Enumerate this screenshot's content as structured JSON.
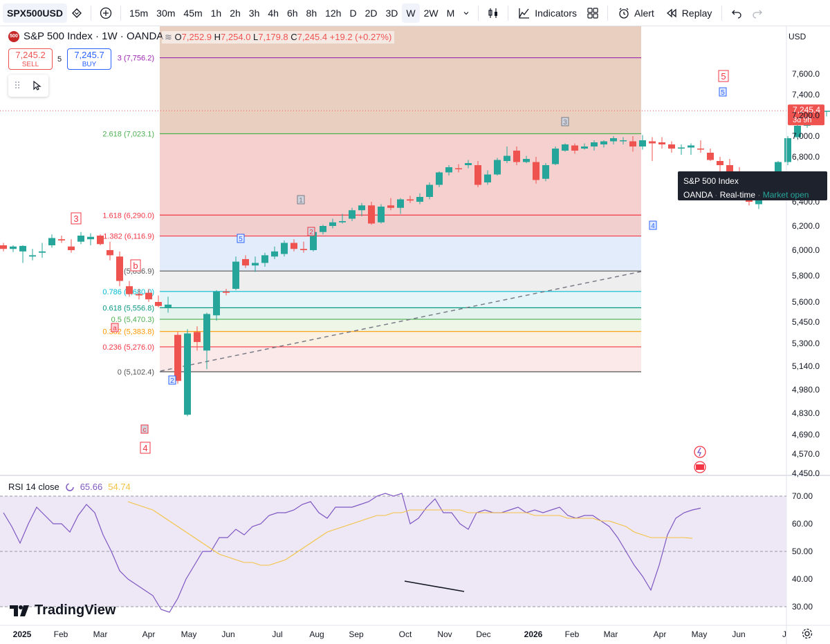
{
  "toolbar": {
    "symbol": "SPX500USD",
    "intervals": [
      "15m",
      "30m",
      "45m",
      "1h",
      "2h",
      "3h",
      "4h",
      "6h",
      "8h",
      "12h",
      "D",
      "2D",
      "3D",
      "W",
      "2W",
      "M"
    ],
    "active_interval": "W",
    "indicators_label": "Indicators",
    "alert_label": "Alert",
    "replay_label": "Replay"
  },
  "legend": {
    "logo_text": "500",
    "title": "S&P 500 Index · 1W · OANDA",
    "ohlc": {
      "o_label": "O",
      "o": "7,252.9",
      "h_label": "H",
      "h": "7,254.0",
      "l_label": "L",
      "l": "7,179.8",
      "c_label": "C",
      "c": "7,245.4",
      "change": "+19.2 (+0.27%)"
    }
  },
  "trade": {
    "sell_price": "7,245.2",
    "sell_label": "SELL",
    "spread": "5",
    "buy_price": "7,245.7",
    "buy_label": "BUY"
  },
  "currency": "USD",
  "tooltip": {
    "title": "S&P 500 Index",
    "source": "OANDA",
    "feed": "Real-time",
    "status": "Market open"
  },
  "price_tag": {
    "value": "7,245.4",
    "countdown": "3d 9h"
  },
  "fib_levels": [
    {
      "label": "3 (7,756.2)",
      "price": 7756.2,
      "color": "#9c27b0"
    },
    {
      "label": "2.618 (7,023.1)",
      "price": 7023.1,
      "color": "#4caf50"
    },
    {
      "label": "1.618 (6,290.0)",
      "price": 6290.0,
      "color": "#f23645"
    },
    {
      "label": "1.382 (6,116.9)",
      "price": 6116.9,
      "color": "#f23645"
    },
    {
      "label": "1 (5,836.9)",
      "price": 5836.9,
      "color": "#555555"
    },
    {
      "label": "0.786 (5,680.0)",
      "price": 5680.0,
      "color": "#00bcd4"
    },
    {
      "label": "0.618 (5,556.8)",
      "price": 5556.8,
      "color": "#089981"
    },
    {
      "label": "0.5 (5,470.3)",
      "price": 5470.3,
      "color": "#4caf50"
    },
    {
      "label": "0.382 (5,383.8)",
      "price": 5383.8,
      "color": "#ff9800"
    },
    {
      "label": "0.236 (5,276.0)",
      "price": 5276.0,
      "color": "#f23645"
    },
    {
      "label": "0 (5,102.4)",
      "price": 5102.4,
      "color": "#555555"
    }
  ],
  "price_axis": [
    "7,600.0",
    "7,400.0",
    "7,200.0",
    "7,000.0",
    "6,800.0",
    "6,600.0",
    "6,400.0",
    "6,200.0",
    "6,000.0",
    "5,800.0",
    "5,600.0",
    "5,450.0",
    "5,300.0",
    "5,140.0",
    "4,980.0",
    "4,830.0",
    "4,690.0",
    "4,570.0",
    "4,450.0"
  ],
  "time_axis": [
    "2025",
    "Feb",
    "Mar",
    "Apr",
    "May",
    "Jun",
    "Jul",
    "Aug",
    "Sep",
    "Oct",
    "Nov",
    "Dec",
    "2026",
    "Feb",
    "Mar",
    "Apr",
    "May",
    "Jun",
    "J"
  ],
  "wave_labels": [
    "3",
    "b",
    "a",
    "c",
    "4",
    "2",
    "5",
    "1",
    "2",
    "3",
    "4",
    "5",
    "5"
  ],
  "rsi": {
    "label": "RSI 14 close",
    "value": "65.66",
    "ma_value": "54.74",
    "axis": [
      "70.00",
      "60.00",
      "50.00",
      "40.00",
      "30.00"
    ]
  },
  "brand": "TradingView",
  "colors": {
    "up": "#26a69a",
    "down": "#ef5350",
    "rsi_line": "#7e57c2",
    "rsi_ma": "#f5c342",
    "rsi_band": "#ede7f6"
  }
}
